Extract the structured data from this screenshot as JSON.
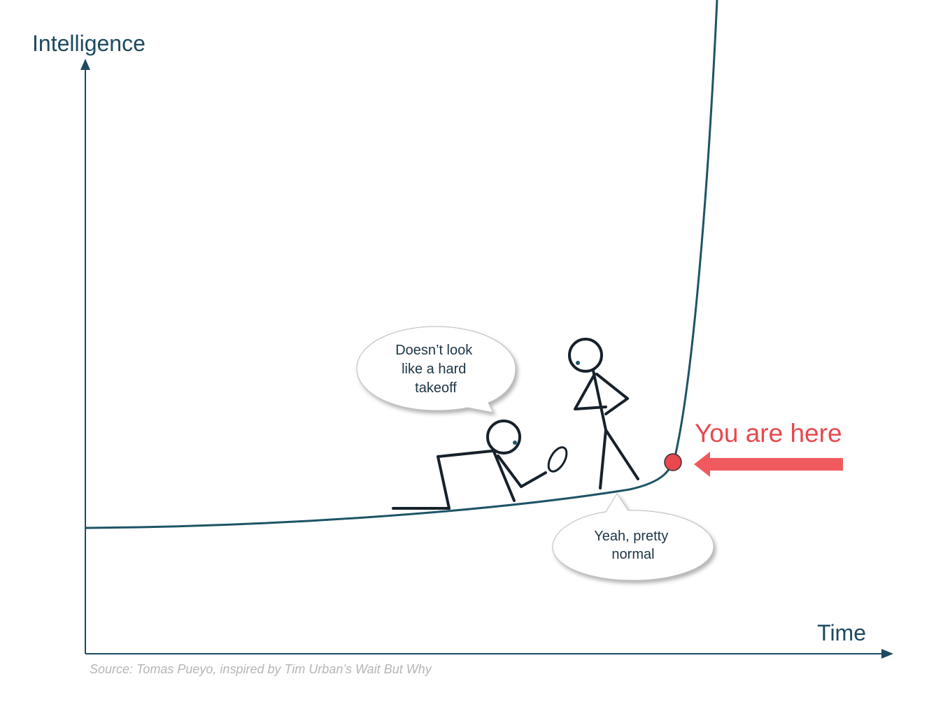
{
  "axes": {
    "y_label": "Intelligence",
    "x_label": "Time"
  },
  "bubbles": [
    {
      "lines": [
        "Doesn’t look",
        "like a hard",
        "takeoff"
      ]
    },
    {
      "lines": [
        "Yeah, pretty",
        "normal"
      ]
    }
  ],
  "annotation": "You are here",
  "source": "Source: Tomas Pueyo, inspired by Tim Urban’s Wait But Why"
}
